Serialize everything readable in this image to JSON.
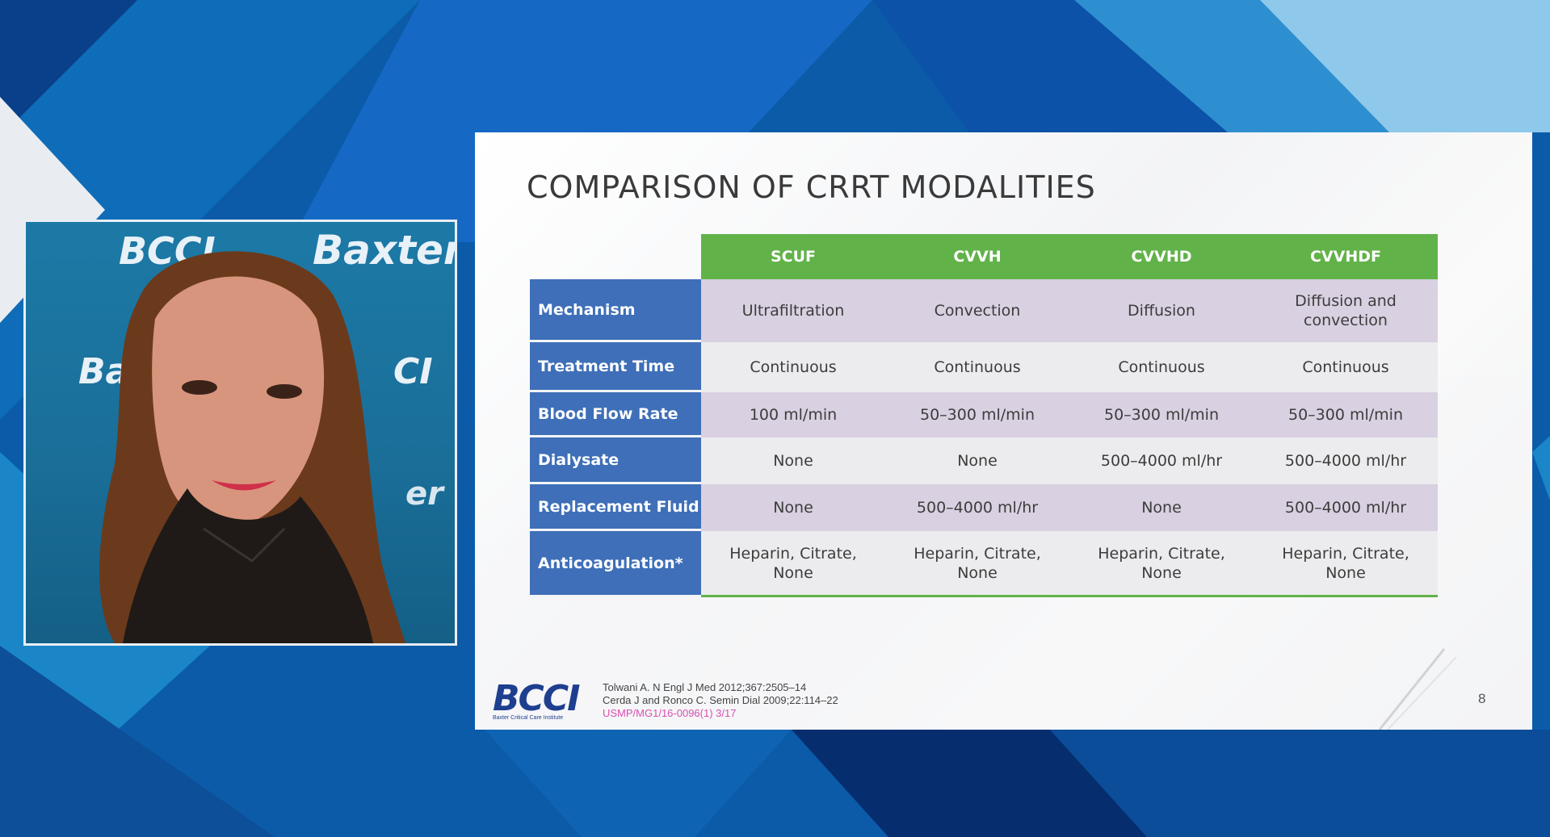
{
  "video": {
    "backdrop_texts": [
      "BCCI",
      "Baxter",
      "Ba",
      "CI",
      "er"
    ]
  },
  "slide": {
    "title": "COMPARISON OF CRRT MODALITIES",
    "columns": [
      "SCUF",
      "CVVH",
      "CVVHD",
      "CVVHDF"
    ],
    "rows": [
      {
        "label": "Mechanism",
        "values": [
          "Ultrafiltration",
          "Convection",
          "Diffusion",
          "Diffusion and convection"
        ]
      },
      {
        "label": "Treatment Time",
        "values": [
          "Continuous",
          "Continuous",
          "Continuous",
          "Continuous"
        ]
      },
      {
        "label": "Blood Flow Rate",
        "values": [
          "100 ml/min",
          "50–300 ml/min",
          "50–300 ml/min",
          "50–300 ml/min"
        ]
      },
      {
        "label": "Dialysate",
        "values": [
          "None",
          "None",
          "500–4000 ml/hr",
          "500–4000 ml/hr"
        ]
      },
      {
        "label": "Replacement Fluid",
        "values": [
          "None",
          "500–4000 ml/hr",
          "None",
          "500–4000 ml/hr"
        ]
      },
      {
        "label": "Anticoagulation*",
        "values": [
          "Heparin, Citrate, None",
          "Heparin, Citrate, None",
          "Heparin, Citrate, None",
          "Heparin, Citrate, None"
        ]
      }
    ],
    "logo": {
      "text": "BCCI",
      "subtitle": "Baxter Critical Care Institute"
    },
    "references": [
      "Tolwani A. N Engl J Med 2012;367:2505–14",
      "Cerda J and Ronco C. Semin Dial 2009;22:114–22"
    ],
    "code": "USMP/MG1/16-0096(1)  3/17",
    "page_number": "8"
  },
  "colors": {
    "header_green": "#62b24a",
    "row_blue": "#3e6fb8",
    "cell_lavender": "#d9d0e1",
    "cell_grey": "#ececee",
    "bg_blue": "#0a5aa8"
  }
}
